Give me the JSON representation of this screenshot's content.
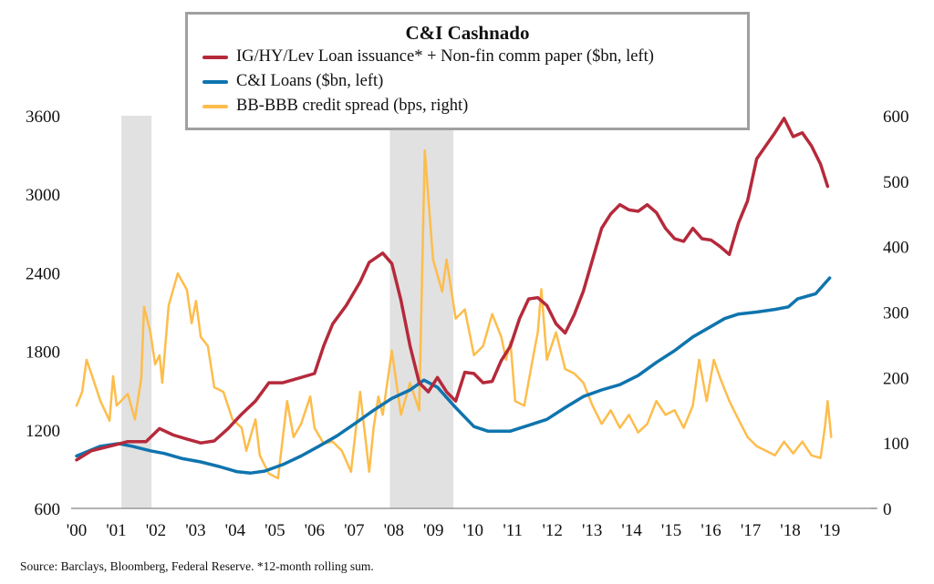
{
  "chart_data": {
    "type": "line",
    "title": "C&I Cashnado",
    "left_axis": {
      "ylim": [
        600,
        3600
      ],
      "ticks": [
        "600",
        "1200",
        "1800",
        "2400",
        "3000",
        "3600"
      ]
    },
    "right_axis": {
      "ylim": [
        0,
        600
      ],
      "ticks": [
        "0",
        "100",
        "200",
        "300",
        "400",
        "500",
        "600"
      ]
    },
    "x_axis": {
      "xlim": [
        2000,
        2019
      ],
      "ticks": [
        "'00",
        "'01",
        "'02",
        "'03",
        "'04",
        "'05",
        "'06",
        "'07",
        "'08",
        "'09",
        "'10",
        "'11",
        "'12",
        "'13",
        "'14",
        "'15",
        "'16",
        "'17",
        "'18",
        "'19"
      ]
    },
    "grid": false,
    "legend_placement": "top-center",
    "recessions": [
      [
        2001.13,
        2001.89
      ],
      [
        2007.9,
        2009.5
      ]
    ],
    "series": [
      {
        "name": "IG/HY/Lev Loan issuance* + Non-fin comm paper ($bn, left)",
        "axis": "left",
        "color": "#b52a3b",
        "points": [
          [
            2000.0,
            970
          ],
          [
            2000.37,
            1040
          ],
          [
            2000.83,
            1075
          ],
          [
            2001.29,
            1110
          ],
          [
            2001.75,
            1110
          ],
          [
            2002.09,
            1210
          ],
          [
            2002.44,
            1160
          ],
          [
            2002.78,
            1130
          ],
          [
            2003.13,
            1100
          ],
          [
            2003.47,
            1115
          ],
          [
            2003.82,
            1210
          ],
          [
            2004.16,
            1320
          ],
          [
            2004.51,
            1420
          ],
          [
            2004.85,
            1560
          ],
          [
            2005.2,
            1560
          ],
          [
            2005.66,
            1600
          ],
          [
            2006.0,
            1630
          ],
          [
            2006.23,
            1840
          ],
          [
            2006.46,
            2010
          ],
          [
            2006.8,
            2150
          ],
          [
            2007.15,
            2330
          ],
          [
            2007.38,
            2480
          ],
          [
            2007.72,
            2550
          ],
          [
            2007.95,
            2470
          ],
          [
            2008.18,
            2190
          ],
          [
            2008.41,
            1840
          ],
          [
            2008.64,
            1560
          ],
          [
            2008.87,
            1490
          ],
          [
            2009.1,
            1600
          ],
          [
            2009.33,
            1490
          ],
          [
            2009.56,
            1420
          ],
          [
            2009.79,
            1640
          ],
          [
            2010.02,
            1630
          ],
          [
            2010.25,
            1560
          ],
          [
            2010.48,
            1570
          ],
          [
            2010.71,
            1730
          ],
          [
            2010.94,
            1840
          ],
          [
            2011.17,
            2050
          ],
          [
            2011.4,
            2200
          ],
          [
            2011.63,
            2210
          ],
          [
            2011.86,
            2150
          ],
          [
            2012.09,
            2010
          ],
          [
            2012.32,
            1940
          ],
          [
            2012.55,
            2080
          ],
          [
            2012.78,
            2260
          ],
          [
            2013.01,
            2500
          ],
          [
            2013.24,
            2740
          ],
          [
            2013.47,
            2850
          ],
          [
            2013.7,
            2920
          ],
          [
            2013.93,
            2880
          ],
          [
            2014.16,
            2870
          ],
          [
            2014.39,
            2920
          ],
          [
            2014.62,
            2860
          ],
          [
            2014.85,
            2740
          ],
          [
            2015.08,
            2660
          ],
          [
            2015.31,
            2640
          ],
          [
            2015.54,
            2740
          ],
          [
            2015.77,
            2660
          ],
          [
            2016.0,
            2650
          ],
          [
            2016.23,
            2600
          ],
          [
            2016.46,
            2540
          ],
          [
            2016.69,
            2780
          ],
          [
            2016.92,
            2950
          ],
          [
            2017.15,
            3270
          ],
          [
            2017.38,
            3370
          ],
          [
            2017.61,
            3470
          ],
          [
            2017.84,
            3580
          ],
          [
            2018.07,
            3440
          ],
          [
            2018.3,
            3470
          ],
          [
            2018.53,
            3370
          ],
          [
            2018.76,
            3230
          ],
          [
            2018.94,
            3060
          ]
        ]
      },
      {
        "name": "C&I Loans ($bn, left)",
        "axis": "left",
        "color": "#0f74ae",
        "points": [
          [
            2000.0,
            1000
          ],
          [
            2000.6,
            1075
          ],
          [
            2001.06,
            1095
          ],
          [
            2001.4,
            1075
          ],
          [
            2001.86,
            1040
          ],
          [
            2002.21,
            1020
          ],
          [
            2002.67,
            980
          ],
          [
            2003.13,
            955
          ],
          [
            2003.59,
            920
          ],
          [
            2004.05,
            880
          ],
          [
            2004.39,
            870
          ],
          [
            2004.74,
            885
          ],
          [
            2005.2,
            935
          ],
          [
            2005.66,
            1000
          ],
          [
            2006.11,
            1075
          ],
          [
            2006.57,
            1155
          ],
          [
            2007.03,
            1250
          ],
          [
            2007.49,
            1350
          ],
          [
            2007.95,
            1440
          ],
          [
            2008.41,
            1505
          ],
          [
            2008.76,
            1580
          ],
          [
            2009.1,
            1525
          ],
          [
            2009.56,
            1370
          ],
          [
            2010.02,
            1225
          ],
          [
            2010.37,
            1190
          ],
          [
            2010.94,
            1190
          ],
          [
            2011.4,
            1235
          ],
          [
            2011.86,
            1280
          ],
          [
            2012.32,
            1370
          ],
          [
            2012.78,
            1455
          ],
          [
            2013.24,
            1505
          ],
          [
            2013.7,
            1545
          ],
          [
            2014.16,
            1615
          ],
          [
            2014.62,
            1715
          ],
          [
            2015.08,
            1805
          ],
          [
            2015.54,
            1910
          ],
          [
            2016.0,
            1990
          ],
          [
            2016.34,
            2050
          ],
          [
            2016.69,
            2085
          ],
          [
            2017.15,
            2100
          ],
          [
            2017.61,
            2120
          ],
          [
            2017.95,
            2140
          ],
          [
            2018.18,
            2200
          ],
          [
            2018.64,
            2240
          ],
          [
            2018.99,
            2360
          ]
        ]
      },
      {
        "name": "BB-BBB credit spread (bps, right)",
        "axis": "right",
        "color": "#fdbd4c",
        "points": [
          [
            2000.0,
            157
          ],
          [
            2000.14,
            178
          ],
          [
            2000.25,
            227
          ],
          [
            2000.37,
            206
          ],
          [
            2000.6,
            164
          ],
          [
            2000.83,
            134
          ],
          [
            2000.92,
            202
          ],
          [
            2001.01,
            157
          ],
          [
            2001.29,
            175
          ],
          [
            2001.47,
            136
          ],
          [
            2001.63,
            199
          ],
          [
            2001.7,
            308
          ],
          [
            2001.86,
            269
          ],
          [
            2001.98,
            220
          ],
          [
            2002.09,
            234
          ],
          [
            2002.16,
            192
          ],
          [
            2002.32,
            310
          ],
          [
            2002.55,
            359
          ],
          [
            2002.78,
            334
          ],
          [
            2002.9,
            283
          ],
          [
            2003.01,
            317
          ],
          [
            2003.13,
            262
          ],
          [
            2003.31,
            248
          ],
          [
            2003.47,
            185
          ],
          [
            2003.7,
            178
          ],
          [
            2003.93,
            136
          ],
          [
            2004.16,
            123
          ],
          [
            2004.28,
            88
          ],
          [
            2004.51,
            136
          ],
          [
            2004.62,
            81
          ],
          [
            2004.85,
            53
          ],
          [
            2005.08,
            46
          ],
          [
            2005.31,
            164
          ],
          [
            2005.47,
            109
          ],
          [
            2005.66,
            129
          ],
          [
            2005.89,
            171
          ],
          [
            2006.0,
            123
          ],
          [
            2006.23,
            99
          ],
          [
            2006.46,
            102
          ],
          [
            2006.69,
            88
          ],
          [
            2006.92,
            56
          ],
          [
            2007.15,
            178
          ],
          [
            2007.38,
            56
          ],
          [
            2007.49,
            123
          ],
          [
            2007.61,
            171
          ],
          [
            2007.72,
            143
          ],
          [
            2007.95,
            241
          ],
          [
            2008.18,
            143
          ],
          [
            2008.41,
            192
          ],
          [
            2008.64,
            150
          ],
          [
            2008.78,
            547
          ],
          [
            2008.99,
            380
          ],
          [
            2009.22,
            331
          ],
          [
            2009.33,
            380
          ],
          [
            2009.56,
            290
          ],
          [
            2009.79,
            304
          ],
          [
            2010.02,
            234
          ],
          [
            2010.25,
            248
          ],
          [
            2010.48,
            297
          ],
          [
            2010.71,
            262
          ],
          [
            2010.83,
            227
          ],
          [
            2010.94,
            255
          ],
          [
            2011.06,
            164
          ],
          [
            2011.29,
            157
          ],
          [
            2011.52,
            234
          ],
          [
            2011.63,
            269
          ],
          [
            2011.72,
            335
          ],
          [
            2011.86,
            227
          ],
          [
            2012.09,
            269
          ],
          [
            2012.32,
            213
          ],
          [
            2012.55,
            206
          ],
          [
            2012.78,
            192
          ],
          [
            2013.01,
            157
          ],
          [
            2013.24,
            129
          ],
          [
            2013.47,
            150
          ],
          [
            2013.7,
            123
          ],
          [
            2013.93,
            143
          ],
          [
            2014.16,
            116
          ],
          [
            2014.39,
            129
          ],
          [
            2014.62,
            164
          ],
          [
            2014.85,
            143
          ],
          [
            2015.08,
            150
          ],
          [
            2015.31,
            123
          ],
          [
            2015.54,
            157
          ],
          [
            2015.7,
            227
          ],
          [
            2015.89,
            164
          ],
          [
            2016.07,
            227
          ],
          [
            2016.23,
            199
          ],
          [
            2016.46,
            164
          ],
          [
            2016.69,
            136
          ],
          [
            2016.92,
            109
          ],
          [
            2017.15,
            95
          ],
          [
            2017.38,
            88
          ],
          [
            2017.61,
            81
          ],
          [
            2017.84,
            102
          ],
          [
            2018.07,
            84
          ],
          [
            2018.3,
            102
          ],
          [
            2018.53,
            81
          ],
          [
            2018.76,
            77
          ],
          [
            2018.87,
            123
          ],
          [
            2018.94,
            164
          ],
          [
            2019.03,
            109
          ]
        ]
      }
    ]
  },
  "source_note": "Source: Barclays, Bloomberg, Federal Reserve. *12-month rolling sum."
}
